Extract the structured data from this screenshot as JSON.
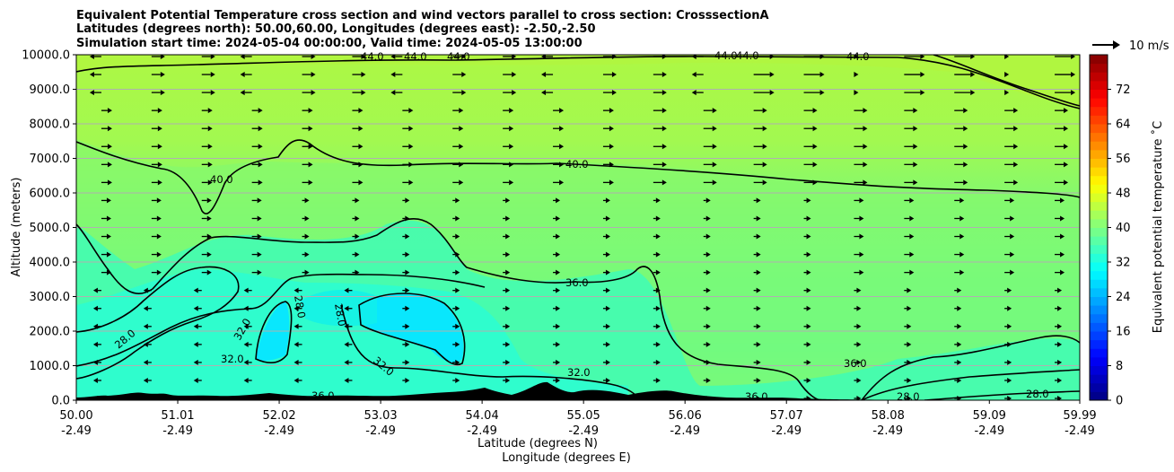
{
  "chart_data": {
    "type": "heatmap",
    "title_lines": [
      "Equivalent Potential Temperature cross section and wind vectors parallel to cross section: CrosssectionA",
      "Latitudes (degrees north): 50.00,60.00, Longitudes (degrees east): -2.50,-2.50",
      "Simulation start time: 2024-05-04 00:00:00, Valid time: 2024-05-05 13:00:00"
    ],
    "ylabel": "Altitude (meters)",
    "xlabel_lines": [
      "Latitude (degrees N)",
      "Longitude (degrees E)"
    ],
    "xlim": [
      50.0,
      59.99
    ],
    "ylim": [
      0,
      10000
    ],
    "x_ticks": [
      {
        "lat": "50.00",
        "lon": "-2.49"
      },
      {
        "lat": "51.01",
        "lon": "-2.49"
      },
      {
        "lat": "52.02",
        "lon": "-2.49"
      },
      {
        "lat": "53.03",
        "lon": "-2.49"
      },
      {
        "lat": "54.04",
        "lon": "-2.49"
      },
      {
        "lat": "55.05",
        "lon": "-2.49"
      },
      {
        "lat": "56.06",
        "lon": "-2.49"
      },
      {
        "lat": "57.07",
        "lon": "-2.49"
      },
      {
        "lat": "58.08",
        "lon": "-2.49"
      },
      {
        "lat": "59.09",
        "lon": "-2.49"
      },
      {
        "lat": "59.99",
        "lon": "-2.49"
      }
    ],
    "y_ticks": [
      "0.0",
      "1000.0",
      "2000.0",
      "3000.0",
      "4000.0",
      "5000.0",
      "6000.0",
      "7000.0",
      "8000.0",
      "9000.0",
      "10000.0"
    ],
    "grid": "horizontal",
    "colorbar": {
      "label": "Equivalent potential temperature ˚C",
      "ticks": [
        "0",
        "8",
        "16",
        "24",
        "32",
        "40",
        "48",
        "56",
        "64",
        "72"
      ],
      "range": [
        0,
        80
      ],
      "colormap": "jet"
    },
    "quiver_key": {
      "label": "10 m/s"
    },
    "contour_labels": [
      "40.0",
      "36.0",
      "32.0",
      "28.0",
      "44.0"
    ],
    "colors": {
      "contour": "#000000",
      "terrain": "#000000",
      "upper_layer": "#a8f84c",
      "mid_layer": "#6af98a",
      "low_layer": "#38fcc0",
      "cold_core": "#00e4ff"
    }
  }
}
